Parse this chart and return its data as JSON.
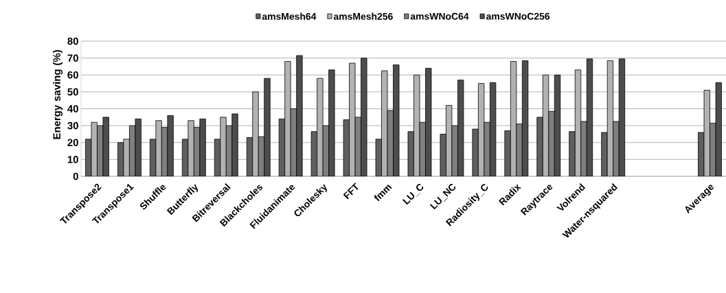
{
  "chart_data": {
    "type": "bar",
    "ylabel": "Energy saving (%)",
    "categories": [
      "Transpose2",
      "Transpose1",
      "Shuffle",
      "Butterfly",
      "Bitreversal",
      "Blackcholes",
      "Fluidanimate",
      "Cholesky",
      "FFT",
      "fmm",
      "LU_C",
      "LU_NC",
      "Radiosity_C",
      "Radix",
      "Raytrace",
      "Volrend",
      "Water-nsquared",
      null,
      null,
      "Average"
    ],
    "series": [
      {
        "name": "amsMesh64",
        "color": "#5f5f5f",
        "values": [
          22,
          20,
          22,
          22,
          22,
          23,
          34,
          26.5,
          33.5,
          22,
          26.5,
          25,
          28,
          27,
          35,
          26.5,
          26,
          null,
          null,
          26
        ]
      },
      {
        "name": "amsMesh256",
        "color": "#b2b2b2",
        "values": [
          32,
          22,
          33,
          33,
          35,
          50,
          68,
          58,
          67,
          62.5,
          60,
          42,
          55,
          68,
          60,
          63,
          68.5,
          null,
          null,
          51
        ]
      },
      {
        "name": "amsWNoC64",
        "color": "#7f7f7f",
        "values": [
          30,
          30,
          29,
          29,
          30,
          23.5,
          40,
          30,
          35,
          39,
          32,
          30,
          32,
          31,
          38.5,
          32.5,
          32.5,
          null,
          null,
          31.5
        ]
      },
      {
        "name": "amsWNoC256",
        "color": "#4d4d4d",
        "values": [
          35,
          34,
          36,
          34,
          37,
          58,
          71.5,
          63,
          70,
          66,
          64,
          57,
          55.5,
          68.5,
          60,
          69.5,
          69.5,
          null,
          null,
          55.5
        ]
      }
    ],
    "ylim": [
      0,
      80
    ],
    "yticks": [
      0,
      10,
      20,
      30,
      40,
      50,
      60,
      70,
      80
    ],
    "grid": "y",
    "legend": "top"
  }
}
